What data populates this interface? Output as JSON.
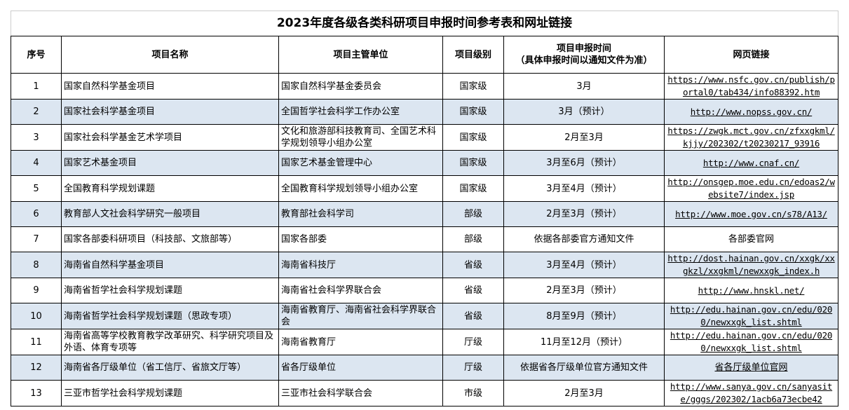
{
  "title": "2023年度各级各类科研项目申报时间参考表和网址链接",
  "headers": [
    "序号",
    "项目名称",
    "项目主管单位",
    "项目级别",
    "项目申报时间\n（具体申报时间以通知文件为准）",
    "网页链接"
  ],
  "header_time": {
    "line1": "项目申报时间",
    "line2": "（具体申报时间以通知文件为准）"
  },
  "rows": [
    {
      "no": "1",
      "name": "国家自然科学基金项目",
      "unit": "国家自然科学基金委员会",
      "level": "国家级",
      "time": "3月",
      "link": "https://www.nsfc.gov.cn/publish/portal0/tab434/info88392.htm"
    },
    {
      "no": "2",
      "name": "国家社会科学基金项目",
      "unit": "全国哲学社会科学工作办公室",
      "level": "国家级",
      "time": "3月（预计）",
      "link": "http://www.nopss.gov.cn/"
    },
    {
      "no": "3",
      "name": "国家社会科学基金艺术学项目",
      "unit": "文化和旅游部科技教育司、全国艺术科学规划领导小组办公室",
      "level": "国家级",
      "time": "2月至3月",
      "link": "https://zwgk.mct.gov.cn/zfxxgkml/kjjy/202302/t20230217_93916"
    },
    {
      "no": "4",
      "name": "国家艺术基金项目",
      "unit": "国家艺术基金管理中心",
      "level": "国家级",
      "time": "3月至6月（预计）",
      "link": "http://www.cnaf.cn/"
    },
    {
      "no": "5",
      "name": "全国教育科学规划课题",
      "unit": "全国教育科学规划领导小组办公室",
      "level": "国家级",
      "time": "3月至4月（预计）",
      "link": "http://onsgep.moe.edu.cn/edoas2/website7/index.jsp"
    },
    {
      "no": "6",
      "name": "教育部人文社会科学研究一般项目",
      "unit": "教育部社会科学司",
      "level": "部级",
      "time": "2月至3月（预计）",
      "link": "http://www.moe.gov.cn/s78/A13/"
    },
    {
      "no": "7",
      "name": "国家各部委科研项目（科技部、文旅部等）",
      "unit": "国家各部委",
      "level": "部级",
      "time": "依据各部委官方通知文件",
      "link": "各部委官网"
    },
    {
      "no": "8",
      "name": "海南省自然科学基金项目",
      "unit": "海南省科技厅",
      "level": "省级",
      "time": "3月至4月（预计）",
      "link": "http://dost.hainan.gov.cn/xxgk/xxgkzl/xxgkml/newxxgk_index.h"
    },
    {
      "no": "9",
      "name": "海南省哲学社会科学规划课题",
      "unit": "海南省社会科学界联合会",
      "level": "省级",
      "time": "2月至3月（预计）",
      "link": "http://www.hnskl.net/"
    },
    {
      "no": "10",
      "name": "海南省哲学社会科学规划课题（思政专项）",
      "unit": "海南省教育厅、海南省社会科学界联合会",
      "level": "省级",
      "time": "8月至9月（预计）",
      "link": "http://edu.hainan.gov.cn/edu/0200/newxxgk_list.shtml"
    },
    {
      "no": "11",
      "name": "海南省高等学校教育教学改革研究、科学研究项目及外语、体育专项等",
      "unit": "海南省教育厅",
      "level": "厅级",
      "time": "11月至12月（预计）",
      "link": "http://edu.hainan.gov.cn/edu/0200/newxxgk_list.shtml"
    },
    {
      "no": "12",
      "name": "海南省各厅级单位（省工信厅、省旅文厅等）",
      "unit": "省各厅级单位",
      "level": "厅级",
      "time": "依据省各厅级单位官方通知文件",
      "link": "省各厅级单位官网"
    },
    {
      "no": "13",
      "name": "三亚市哲学社会科学规划课题",
      "unit": "三亚市社会科学联合会",
      "level": "市级",
      "time": "2月至3月",
      "link": "http://www.sanya.gov.cn/sanyasite/gggs/202302/1acb6a73ecbe42"
    }
  ]
}
